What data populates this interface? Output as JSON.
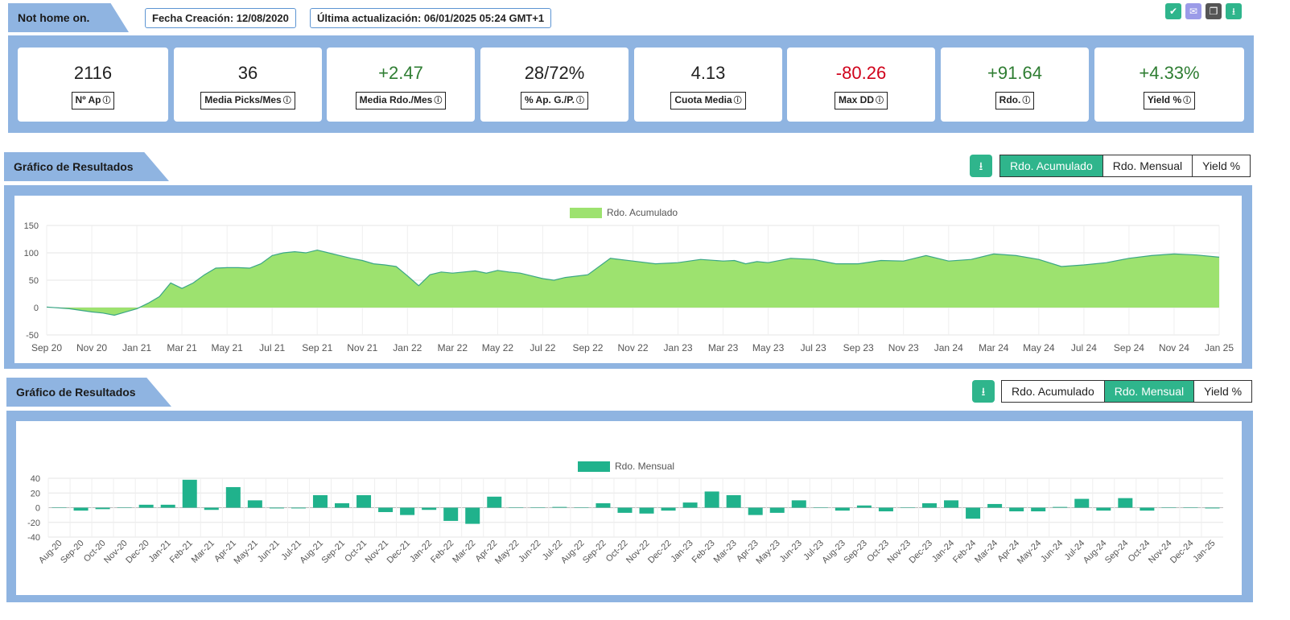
{
  "header": {
    "name": "Not home on.",
    "fecha_creacion": "Fecha Creación: 12/08/2020",
    "ultima_actualizacion": "Última actualización: 06/01/2025 05:24 GMT+1",
    "action_icons": [
      "check-icon",
      "mail-icon",
      "copy-icon",
      "download-icon"
    ],
    "action_colors": [
      "#2fb58c",
      "#9b9be8",
      "#555555",
      "#2fb58c"
    ]
  },
  "kpis": [
    {
      "value": "2116",
      "label": "Nº Ap",
      "tone": "neu"
    },
    {
      "value": "36",
      "label": "Media Picks/Mes",
      "tone": "neu"
    },
    {
      "value": "+2.47",
      "label": "Media Rdo./Mes",
      "tone": "pos"
    },
    {
      "value": "28/72%",
      "label": "% Ap. G./P.",
      "tone": "neu"
    },
    {
      "value": "4.13",
      "label": "Cuota Media",
      "tone": "neu"
    },
    {
      "value": "-80.26",
      "label": "Max DD",
      "tone": "neg"
    },
    {
      "value": "+91.64",
      "label": "Rdo.",
      "tone": "pos"
    },
    {
      "value": "+4.33%",
      "label": "Yield %",
      "tone": "pos"
    }
  ],
  "section1": {
    "title": "Gráfico de Resultados",
    "buttons": [
      "Rdo. Acumulado",
      "Rdo. Mensual",
      "Yield %"
    ],
    "active": 0
  },
  "section2": {
    "title": "Gráfico de Resultados",
    "buttons": [
      "Rdo. Acumulado",
      "Rdo. Mensual",
      "Yield %"
    ],
    "active": 1
  },
  "colors": {
    "accent": "#2fb58c",
    "panel": "#8fb4e1",
    "area_fill": "#9de26f",
    "area_line": "#3aa686",
    "bar": "#20b28c"
  },
  "chart_data": [
    {
      "type": "area",
      "legend": "Rdo. Acumulado",
      "ylim": [
        -50,
        150
      ],
      "yticks": [
        -50,
        0,
        50,
        100,
        150
      ],
      "xticks": [
        "Sep 20",
        "Nov 20",
        "Jan 21",
        "Mar 21",
        "May 21",
        "Jul 21",
        "Sep 21",
        "Nov 21",
        "Jan 22",
        "Mar 22",
        "May 22",
        "Jul 22",
        "Sep 22",
        "Nov 22",
        "Jan 23",
        "Mar 23",
        "May 23",
        "Jul 23",
        "Sep 23",
        "Nov 23",
        "Jan 24",
        "Mar 24",
        "May 24",
        "Jul 24",
        "Sep 24",
        "Nov 24",
        "Jan 25"
      ],
      "x_months_since_sep20": [
        0,
        1,
        1.5,
        2,
        2.5,
        3,
        3.5,
        4,
        4.5,
        5,
        5.5,
        6,
        6.5,
        7,
        7.5,
        8,
        8.5,
        9,
        9.5,
        10,
        10.5,
        11,
        11.5,
        12,
        12.5,
        13,
        13.5,
        14,
        14.5,
        15,
        15.5,
        16,
        16.5,
        17,
        17.5,
        18,
        18.5,
        19,
        19.5,
        20,
        20.5,
        21,
        21.5,
        22,
        22.5,
        23,
        24,
        25,
        26,
        27,
        28,
        29,
        30,
        30.5,
        31,
        31.5,
        32,
        33,
        34,
        35,
        36,
        37,
        38,
        39,
        40,
        41,
        42,
        43,
        44,
        45,
        46,
        47,
        48,
        49,
        50,
        51,
        52
      ],
      "y": [
        1,
        -2,
        -5,
        -8,
        -10,
        -14,
        -8,
        -2,
        8,
        20,
        45,
        35,
        45,
        60,
        72,
        73,
        73,
        72,
        80,
        95,
        100,
        102,
        100,
        105,
        100,
        95,
        90,
        86,
        80,
        78,
        75,
        58,
        40,
        60,
        65,
        63,
        65,
        67,
        63,
        68,
        65,
        63,
        58,
        53,
        50,
        55,
        60,
        90,
        85,
        80,
        82,
        88,
        85,
        86,
        80,
        84,
        82,
        90,
        88,
        80,
        80,
        86,
        85,
        95,
        85,
        88,
        98,
        95,
        88,
        75,
        78,
        82,
        90,
        95,
        98,
        96,
        92
      ]
    },
    {
      "type": "bar",
      "legend": "Rdo. Mensual",
      "ylim": [
        -40,
        40
      ],
      "yticks": [
        -40,
        -20,
        0,
        20,
        40
      ],
      "categories": [
        "Aug-20",
        "Sep-20",
        "Oct-20",
        "Nov-20",
        "Dec-20",
        "Jan-21",
        "Feb-21",
        "Mar-21",
        "Apr-21",
        "May-21",
        "Jun-21",
        "Jul-21",
        "Aug-21",
        "Sep-21",
        "Oct-21",
        "Nov-21",
        "Dec-21",
        "Jan-22",
        "Feb-22",
        "Mar-22",
        "Apr-22",
        "May-22",
        "Jun-22",
        "Jul-22",
        "Aug-22",
        "Sep-22",
        "Oct-22",
        "Nov-22",
        "Dec-22",
        "Jan-23",
        "Feb-23",
        "Mar-23",
        "Apr-23",
        "May-23",
        "Jun-23",
        "Jul-23",
        "Aug-23",
        "Sep-23",
        "Oct-23",
        "Nov-23",
        "Dec-23",
        "Jan-24",
        "Feb-24",
        "Mar-24",
        "Apr-24",
        "May-24",
        "Jun-24",
        "Jul-24",
        "Aug-24",
        "Sep-24",
        "Oct-24",
        "Nov-24",
        "Dec-24",
        "Jan-25"
      ],
      "values": [
        0,
        -4,
        -2,
        0,
        4,
        4,
        38,
        -3,
        28,
        10,
        -1,
        -1,
        17,
        6,
        17,
        -6,
        -10,
        -3,
        -18,
        -22,
        15,
        0,
        0,
        1,
        0,
        6,
        -7,
        -8,
        -4,
        7,
        22,
        17,
        -10,
        -7,
        10,
        0,
        -4,
        3,
        -5,
        0,
        6,
        10,
        -15,
        5,
        -5,
        -5,
        1,
        12,
        -4,
        13,
        -4,
        0,
        0,
        -1
      ]
    }
  ]
}
